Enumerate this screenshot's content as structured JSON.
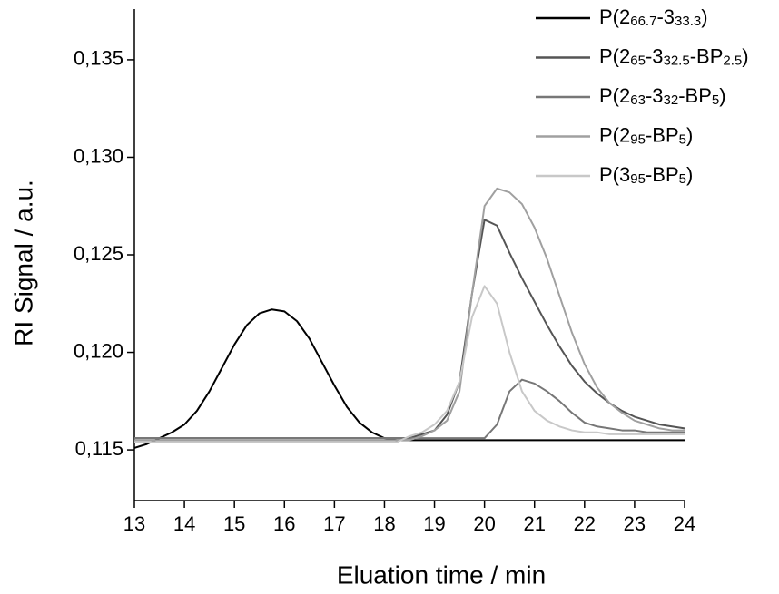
{
  "chart_data": {
    "type": "line",
    "xlabel": "Eluation time / min",
    "ylabel": "RI Signal / a.u.",
    "x": [
      13,
      13.25,
      13.5,
      13.75,
      14,
      14.25,
      14.5,
      14.75,
      15,
      15.25,
      15.5,
      15.75,
      16,
      16.25,
      16.5,
      16.75,
      17,
      17.25,
      17.5,
      17.75,
      18,
      18.25,
      18.5,
      18.75,
      19,
      19.25,
      19.5,
      19.75,
      20,
      20.25,
      20.5,
      20.75,
      21,
      21.25,
      21.5,
      21.75,
      22,
      22.25,
      22.5,
      22.75,
      23,
      23.25,
      23.5,
      23.75,
      24
    ],
    "series": [
      {
        "name": [
          "P(2",
          "66.7",
          "-3",
          "33.3",
          ")"
        ],
        "color": "#000000",
        "values": [
          0.1151,
          0.1153,
          0.1156,
          0.1159,
          0.1163,
          0.117,
          0.118,
          0.1192,
          0.1204,
          0.1214,
          0.122,
          0.1222,
          0.1221,
          0.1216,
          0.1207,
          0.1195,
          0.1183,
          0.1172,
          0.1164,
          0.1159,
          0.1156,
          0.1155,
          0.1155,
          0.1155,
          0.1155,
          0.1155,
          0.1155,
          0.1155,
          0.1155,
          0.1155,
          0.1155,
          0.1155,
          0.1155,
          0.1155,
          0.1155,
          0.1155,
          0.1155,
          0.1155,
          0.1155,
          0.1155,
          0.1155,
          0.1155,
          0.1155,
          0.1155,
          0.1155
        ]
      },
      {
        "name": [
          "P(2",
          "65",
          "-3",
          "32.5",
          "-BP",
          "2.5",
          ")"
        ],
        "color": "#555555",
        "values": [
          0.1156,
          0.1156,
          0.1156,
          0.1156,
          0.1156,
          0.1156,
          0.1156,
          0.1156,
          0.1156,
          0.1156,
          0.1156,
          0.1156,
          0.1156,
          0.1156,
          0.1156,
          0.1156,
          0.1156,
          0.1156,
          0.1156,
          0.1156,
          0.1156,
          0.1156,
          0.1156,
          0.1158,
          0.116,
          0.1168,
          0.1185,
          0.123,
          0.1268,
          0.1265,
          0.1251,
          0.1238,
          0.1226,
          0.1214,
          0.1203,
          0.1193,
          0.1185,
          0.1179,
          0.1174,
          0.117,
          0.1167,
          0.1165,
          0.1163,
          0.1162,
          0.1161
        ]
      },
      {
        "name": [
          "P(2",
          "63",
          "-3",
          "32",
          "-BP",
          "5",
          ")"
        ],
        "color": "#777777",
        "values": [
          0.1156,
          0.1156,
          0.1156,
          0.1156,
          0.1156,
          0.1156,
          0.1156,
          0.1156,
          0.1156,
          0.1156,
          0.1156,
          0.1156,
          0.1156,
          0.1156,
          0.1156,
          0.1156,
          0.1156,
          0.1156,
          0.1156,
          0.1156,
          0.1156,
          0.1156,
          0.1156,
          0.1156,
          0.1156,
          0.1156,
          0.1156,
          0.1156,
          0.1156,
          0.1163,
          0.118,
          0.1186,
          0.1184,
          0.118,
          0.1175,
          0.1169,
          0.1164,
          0.1162,
          0.1161,
          0.116,
          0.116,
          0.1159,
          0.1159,
          0.1159,
          0.1159
        ]
      },
      {
        "name": [
          "P(2",
          "95",
          "-BP",
          "5",
          ")"
        ],
        "color": "#a0a0a0",
        "values": [
          0.1155,
          0.1155,
          0.1155,
          0.1155,
          0.1155,
          0.1155,
          0.1155,
          0.1155,
          0.1155,
          0.1155,
          0.1155,
          0.1155,
          0.1155,
          0.1155,
          0.1155,
          0.1155,
          0.1155,
          0.1155,
          0.1155,
          0.1155,
          0.1155,
          0.1155,
          0.1155,
          0.1157,
          0.116,
          0.1165,
          0.118,
          0.123,
          0.1275,
          0.1284,
          0.1282,
          0.1276,
          0.1264,
          0.1248,
          0.1229,
          0.121,
          0.1194,
          0.1182,
          0.1174,
          0.1169,
          0.1165,
          0.1163,
          0.1161,
          0.116,
          0.116
        ]
      },
      {
        "name": [
          "P(3",
          "95",
          "-BP",
          "5",
          ")"
        ],
        "color": "#c8c8c8",
        "values": [
          0.1154,
          0.1154,
          0.1154,
          0.1154,
          0.1154,
          0.1154,
          0.1154,
          0.1154,
          0.1154,
          0.1154,
          0.1154,
          0.1154,
          0.1154,
          0.1154,
          0.1154,
          0.1154,
          0.1154,
          0.1154,
          0.1154,
          0.1154,
          0.1154,
          0.1154,
          0.1157,
          0.1159,
          0.1163,
          0.117,
          0.1185,
          0.1218,
          0.1234,
          0.1225,
          0.12,
          0.118,
          0.117,
          0.1165,
          0.1162,
          0.116,
          0.1159,
          0.1159,
          0.1158,
          0.1158,
          0.1158,
          0.1158,
          0.1158,
          0.1158,
          0.1158
        ]
      }
    ],
    "xlim": [
      13,
      24
    ],
    "xticks": [
      13,
      14,
      15,
      16,
      17,
      18,
      19,
      20,
      21,
      22,
      23,
      24
    ],
    "ylim": [
      0.1124,
      0.1376
    ],
    "yticks": [
      {
        "value": 0.115,
        "label": "0,115"
      },
      {
        "value": 0.12,
        "label": "0,120"
      },
      {
        "value": 0.125,
        "label": "0,125"
      },
      {
        "value": 0.13,
        "label": "0,130"
      },
      {
        "value": 0.135,
        "label": "0,135"
      }
    ],
    "grid": false,
    "legend": "upper right"
  }
}
